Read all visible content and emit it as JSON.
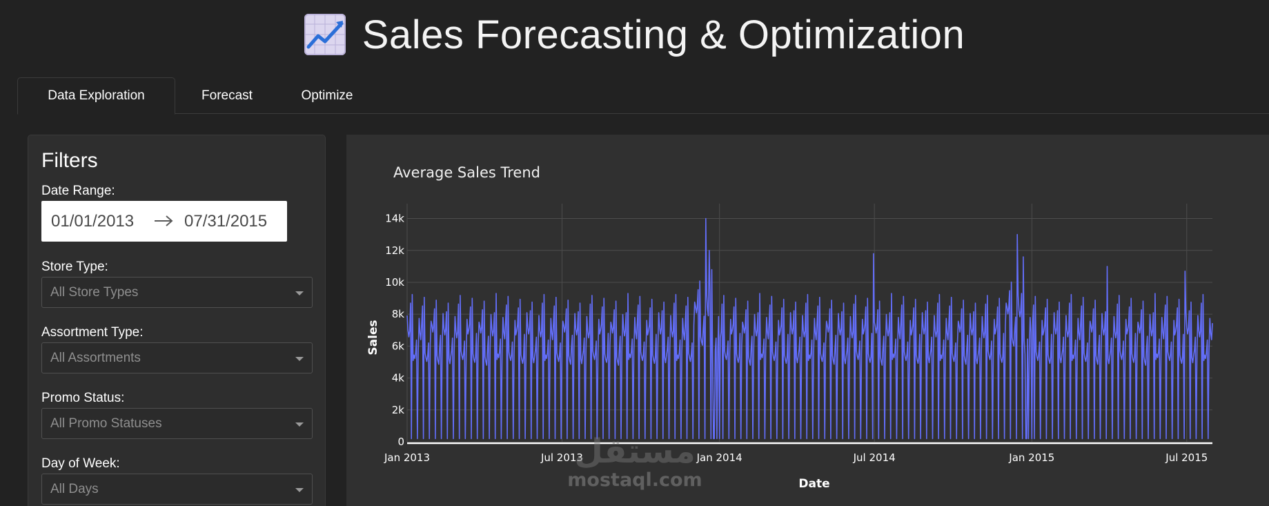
{
  "header": {
    "title": "Sales Forecasting & Optimization",
    "icon": "chart-increasing-icon"
  },
  "tabs": [
    {
      "label": "Data Exploration",
      "active": true
    },
    {
      "label": "Forecast",
      "active": false
    },
    {
      "label": "Optimize",
      "active": false
    }
  ],
  "filters": {
    "title": "Filters",
    "date_range": {
      "label": "Date Range:",
      "start": "01/01/2013",
      "end": "07/31/2015"
    },
    "store_type": {
      "label": "Store Type:",
      "value": "All Store Types"
    },
    "assortment_type": {
      "label": "Assortment Type:",
      "value": "All Assortments"
    },
    "promo_status": {
      "label": "Promo Status:",
      "value": "All Promo Statuses"
    },
    "day_of_week": {
      "label": "Day of Week:",
      "value": "All Days"
    }
  },
  "watermark": {
    "arabic": "مستقل",
    "latin": "mostaql.com"
  },
  "chart_data": {
    "type": "line",
    "title": "Average Sales Trend",
    "xlabel": "Date",
    "ylabel": "Sales",
    "x_range": [
      "2013-01-01",
      "2015-07-31"
    ],
    "ylim": [
      0,
      14500
    ],
    "x_ticks": [
      {
        "date": "2013-01-01",
        "label": "Jan 2013"
      },
      {
        "date": "2013-07-01",
        "label": "Jul 2013"
      },
      {
        "date": "2014-01-01",
        "label": "Jan 2014"
      },
      {
        "date": "2014-07-01",
        "label": "Jul 2014"
      },
      {
        "date": "2015-01-01",
        "label": "Jan 2015"
      },
      {
        "date": "2015-07-01",
        "label": "Jul 2015"
      }
    ],
    "y_ticks": [
      {
        "value": 0,
        "label": "0"
      },
      {
        "value": 2000,
        "label": "2k"
      },
      {
        "value": 4000,
        "label": "4k"
      },
      {
        "value": 6000,
        "label": "6k"
      },
      {
        "value": 8000,
        "label": "8k"
      },
      {
        "value": 10000,
        "label": "10k"
      },
      {
        "value": 12000,
        "label": "12k"
      },
      {
        "value": 14000,
        "label": "14k"
      }
    ],
    "grid": true,
    "series": [
      {
        "color": "#636efa",
        "pattern": {
          "description_of_values": "daily mean sales; Sundays near zero, weekday values cycle with biweekly promo peaks",
          "sunday_value": 200,
          "promo_week_values": [
            9000,
            7800,
            7000,
            6700,
            7200,
            8400
          ],
          "nonpromo_week_values": [
            5800,
            5400,
            5200,
            5100,
            5600,
            6500
          ],
          "peak_days": [
            {
              "date": "2013-12-16",
              "value": 14000
            },
            {
              "date": "2013-12-20",
              "value": 12000
            },
            {
              "date": "2013-12-23",
              "value": 10800
            },
            {
              "date": "2014-06-30",
              "value": 11800
            },
            {
              "date": "2014-12-15",
              "value": 13000
            },
            {
              "date": "2014-12-22",
              "value": 11600
            },
            {
              "date": "2015-03-30",
              "value": 11000
            },
            {
              "date": "2015-06-29",
              "value": 10700
            }
          ],
          "closure_days": [
            "2013-12-25",
            "2013-12-26",
            "2014-01-01",
            "2014-12-25",
            "2014-12-26",
            "2015-01-01"
          ]
        }
      }
    ]
  }
}
